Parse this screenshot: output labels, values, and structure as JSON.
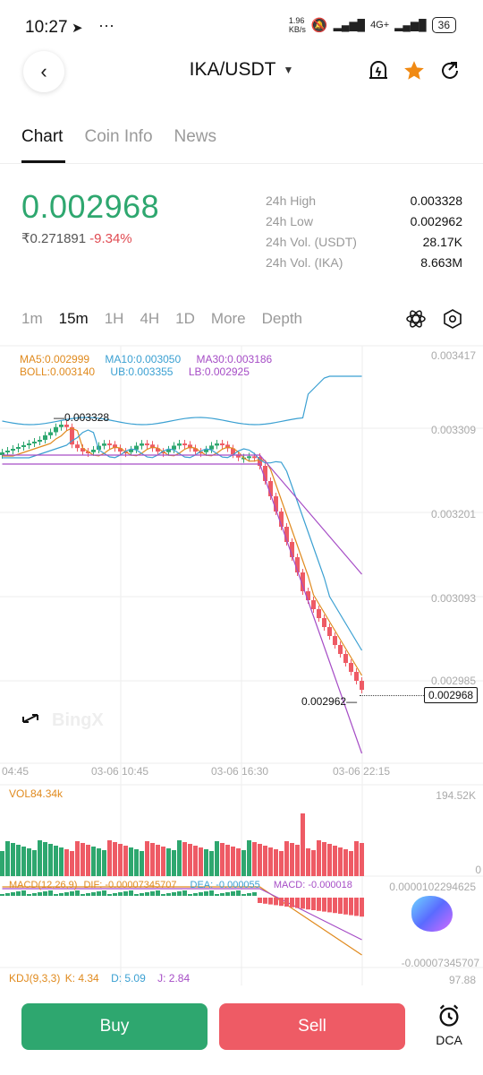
{
  "status_bar": {
    "time": "10:27",
    "speed": "1.96\nKB/s",
    "network": "4G+",
    "battery": "36"
  },
  "header": {
    "pair": "IKA/USDT"
  },
  "tabs": [
    {
      "label": "Chart",
      "active": true
    },
    {
      "label": "Coin Info",
      "active": false
    },
    {
      "label": "News",
      "active": false
    }
  ],
  "price": {
    "last": "0.002968",
    "fiat": "₹0.271891",
    "change": "-9.34%"
  },
  "stats": [
    {
      "label": "24h High",
      "value": "0.003328"
    },
    {
      "label": "24h Low",
      "value": "0.002962"
    },
    {
      "label": "24h Vol. (USDT)",
      "value": "28.17K"
    },
    {
      "label": "24h Vol. (IKA)",
      "value": "8.663M"
    }
  ],
  "intervals": [
    "1m",
    "15m",
    "1H",
    "4H",
    "1D",
    "More",
    "Depth"
  ],
  "chart": {
    "ma_legend": {
      "ma5": "MA5:0.002999",
      "ma10": "MA10:0.003050",
      "ma30": "MA30:0.003186"
    },
    "boll_legend": {
      "boll": "BOLL:0.003140",
      "ub": "UB:0.003355",
      "lb": "LB:0.002925"
    },
    "price_axis": [
      "0.003417",
      "0.003309",
      "0.003201",
      "0.003093",
      "0.002985"
    ],
    "high_marker": "0.003328",
    "low_marker": "0.002962",
    "current_tag": "0.002968",
    "time_axis": [
      "04:45",
      "03-06 10:45",
      "03-06 16:30",
      "03-06 22:15"
    ],
    "watermark": "BingX",
    "volume": {
      "label": "VOL84.34k",
      "max": "194.52K",
      "zero": "0"
    },
    "macd": {
      "label": "MACD(12,26,9)",
      "dif": "DIF: -0.00007345707",
      "dea": "DEA: -0.000055",
      "macd": "MACD: -0.000018",
      "top": "0.0000102294625",
      "bottom": "-0.00007345707"
    },
    "kdj": {
      "label": "KDJ(9,3,3)",
      "k": "K: 4.34",
      "d": "D: 5.09",
      "j": "J: 2.84",
      "top": "97.88"
    }
  },
  "colors": {
    "up": "#2ea76f",
    "down": "#ee5b65",
    "ma5": "#e08a1e",
    "ma10": "#3ba0d2",
    "ma30": "#a64dc6"
  },
  "actions": {
    "buy": "Buy",
    "sell": "Sell",
    "dca": "DCA"
  }
}
